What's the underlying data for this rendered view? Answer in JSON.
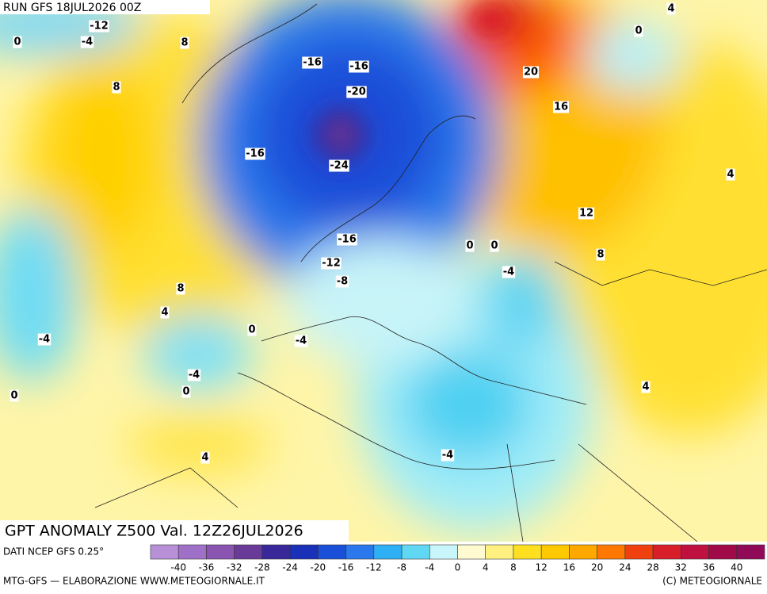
{
  "header": {
    "run": "RUN GFS 18JUL2026 00Z"
  },
  "title": "GPT ANOMALY Z500 Val. 12Z26JUL2026",
  "source": "DATI NCEP GFS 0.25°",
  "footer_left": "MTG-GFS — ELABORAZIONE WWW.METEOGIORNALE.IT",
  "footer_right": "(C) METEOGIORNALE",
  "colorbar": {
    "ticks": [
      -40,
      -36,
      -32,
      -28,
      -24,
      -20,
      -16,
      -12,
      -8,
      -4,
      0,
      4,
      8,
      12,
      16,
      20,
      24,
      28,
      32,
      36,
      40
    ],
    "colors": [
      "#b890d8",
      "#a070c8",
      "#8a55b0",
      "#6a3a98",
      "#38289a",
      "#1a30b8",
      "#1a50d8",
      "#2a78ec",
      "#30b0f4",
      "#60d8f4",
      "#c8f6fa",
      "#fffad0",
      "#fff080",
      "#ffe020",
      "#ffc800",
      "#ffa800",
      "#ff7800",
      "#f04010",
      "#d81e28",
      "#c01040",
      "#a00a48",
      "#900a58"
    ]
  },
  "contour_labels": [
    -12,
    -4,
    0,
    8,
    8,
    -16,
    -16,
    -20,
    -16,
    -24,
    -16,
    -12,
    -8,
    0,
    0,
    -4,
    8,
    4,
    0,
    -4,
    -4,
    -4,
    0,
    0,
    4,
    -4,
    4,
    8,
    12,
    16,
    20,
    0,
    4,
    4
  ]
}
